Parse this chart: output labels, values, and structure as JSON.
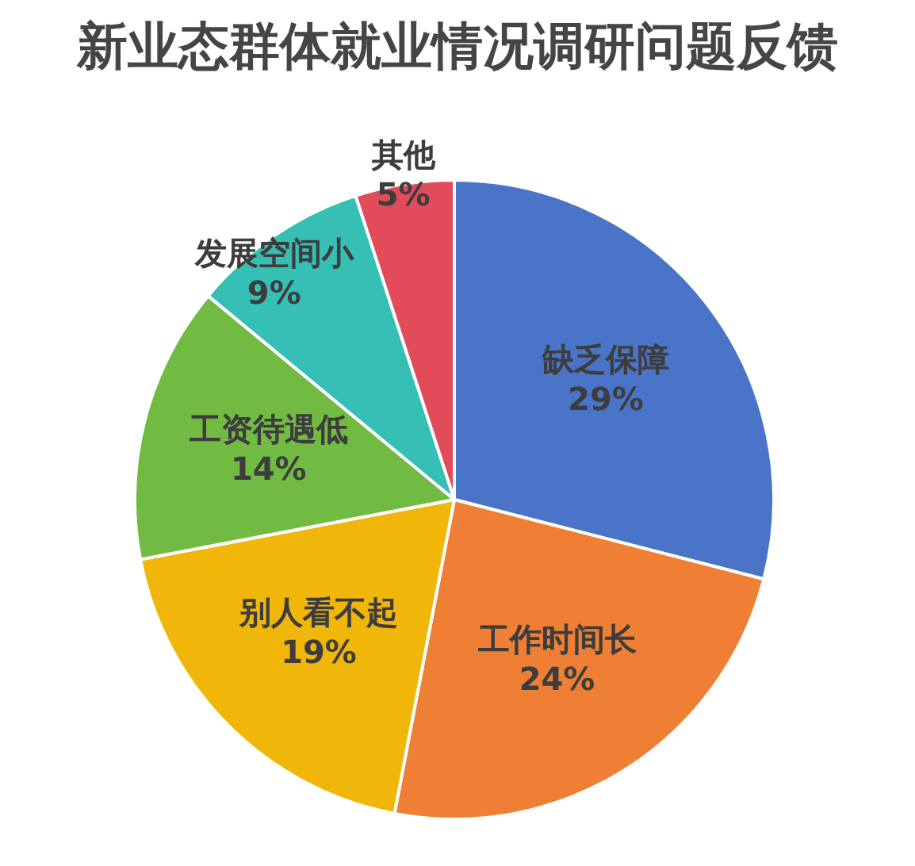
{
  "chart_data": {
    "type": "pie",
    "title": "新业态群体就业情况调研问题反馈",
    "categories": [
      "缺乏保障",
      "工作时间长",
      "别人看不起",
      "工资待遇低",
      "发展空间小",
      "其他"
    ],
    "values": [
      29,
      24,
      19,
      14,
      9,
      5
    ],
    "value_labels": [
      "29%",
      "24%",
      "19%",
      "14%",
      "9%",
      "5%"
    ],
    "colors": [
      "#4a74c8",
      "#ee7f34",
      "#f0b70a",
      "#72bb43",
      "#35bfb5",
      "#e24b5a"
    ]
  }
}
